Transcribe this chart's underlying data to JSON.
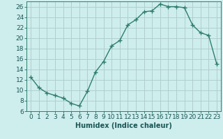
{
  "x": [
    0,
    1,
    2,
    3,
    4,
    5,
    6,
    7,
    8,
    9,
    10,
    11,
    12,
    13,
    14,
    15,
    16,
    17,
    18,
    19,
    20,
    21,
    22,
    23
  ],
  "y": [
    12.5,
    10.5,
    9.5,
    9.0,
    8.5,
    7.5,
    7.0,
    9.8,
    13.5,
    15.5,
    18.5,
    19.5,
    22.5,
    23.5,
    25.0,
    25.2,
    26.5,
    26.0,
    26.0,
    25.8,
    22.5,
    21.0,
    20.5,
    15.0
  ],
  "line_color": "#2e7d6e",
  "marker": "+",
  "marker_size": 4,
  "bg_color": "#ceeeed",
  "grid_color": "#b0cece",
  "xlabel": "Humidex (Indice chaleur)",
  "xlim": [
    -0.5,
    23.5
  ],
  "ylim": [
    6,
    27
  ],
  "yticks": [
    6,
    8,
    10,
    12,
    14,
    16,
    18,
    20,
    22,
    24,
    26
  ],
  "xticks": [
    0,
    1,
    2,
    3,
    4,
    5,
    6,
    7,
    8,
    9,
    10,
    11,
    12,
    13,
    14,
    15,
    16,
    17,
    18,
    19,
    20,
    21,
    22,
    23
  ],
  "xlabel_fontsize": 7,
  "tick_fontsize": 6.5,
  "line_width": 1.0,
  "label_color": "#1a5555"
}
